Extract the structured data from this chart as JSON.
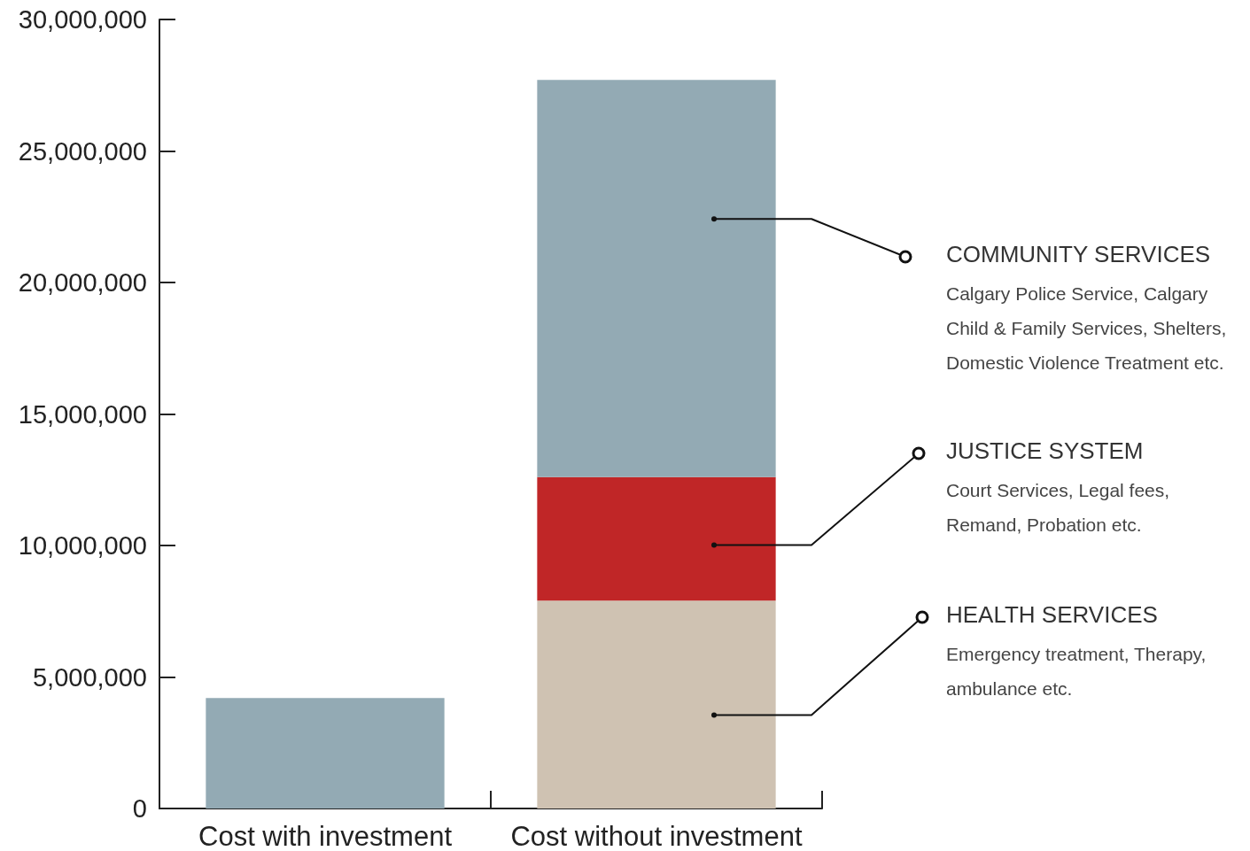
{
  "chart_data": {
    "type": "bar",
    "stacked": true,
    "categories": [
      "Cost with investment",
      "Cost without investment"
    ],
    "series": [
      {
        "name": "HEALTH SERVICES",
        "color": "#cfc2b2",
        "values": [
          null,
          7900000
        ]
      },
      {
        "name": "JUSTICE SYSTEM",
        "color": "#c02627",
        "values": [
          null,
          4700000
        ]
      },
      {
        "name": "COMMUNITY SERVICES",
        "color": "#93aab4",
        "values": [
          4200000,
          15100000
        ]
      }
    ],
    "ylim": [
      0,
      30000000
    ],
    "yticks": [
      {
        "value": 0,
        "label": "0"
      },
      {
        "value": 5000000,
        "label": "5,000,000"
      },
      {
        "value": 10000000,
        "label": "10,000,000"
      },
      {
        "value": 15000000,
        "label": "15,000,000"
      },
      {
        "value": 20000000,
        "label": "20,000,000"
      },
      {
        "value": 25000000,
        "label": "25,000,000"
      },
      {
        "value": 30000000,
        "label": "30,000,000"
      }
    ],
    "grid": false,
    "legend": false,
    "annotations": [
      "Calgary Police Service, Calgary Child & Family Services, Shelters, Domestic Violence Treatment etc.",
      "Court Services, Legal fees, Remand, Probation etc.",
      "Emergency treatment, Therapy, ambulance etc."
    ]
  }
}
